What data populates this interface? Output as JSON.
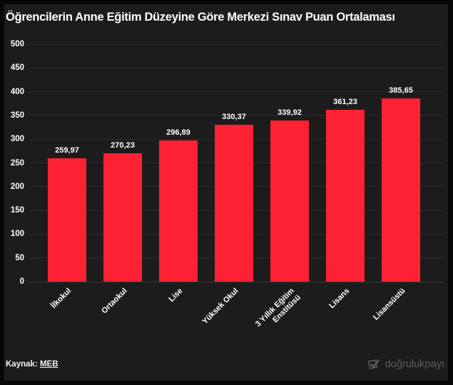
{
  "title": "Öğrencilerin Anne Eğitim Düzeyine Göre Merkezi Sınav Puan Ortalaması",
  "source": {
    "label": "Kaynak:",
    "link_text": "MEB"
  },
  "branding": {
    "name": "doğrulukpayı",
    "icon": "check-logo-icon",
    "color": "#5c5c5c"
  },
  "colors": {
    "frame": "#070707",
    "background": "#1c1c1c",
    "bar": "#fc2233",
    "grid": "#2d2d2d",
    "text": "#ffffff"
  },
  "chart_data": {
    "type": "bar",
    "title": "Öğrencilerin Anne Eğitim Düzeyine Göre Merkezi Sınav Puan Ortalaması",
    "categories": [
      "İlkokul",
      "Ortaokul",
      "Lise",
      "Yüksek Okul",
      "3 Yıllık Eğitim\nEnstitüsü",
      "Lisans",
      "Lisansüstü"
    ],
    "values": [
      259.97,
      270.23,
      296.89,
      330.37,
      339.92,
      361.23,
      385.65
    ],
    "value_labels": [
      "259,97",
      "270,23",
      "296,89",
      "330,37",
      "339,92",
      "361,23",
      "385,65"
    ],
    "xlabel": "",
    "ylabel": "",
    "ylim": [
      0,
      500
    ],
    "ytick_step": 50,
    "ytick_labels": [
      "0",
      "50",
      "100",
      "150",
      "200",
      "250",
      "300",
      "350",
      "400",
      "450",
      "500"
    ],
    "grid": true,
    "legend": false,
    "bar_color": "#fc2233",
    "label_rotation_deg": 45
  }
}
